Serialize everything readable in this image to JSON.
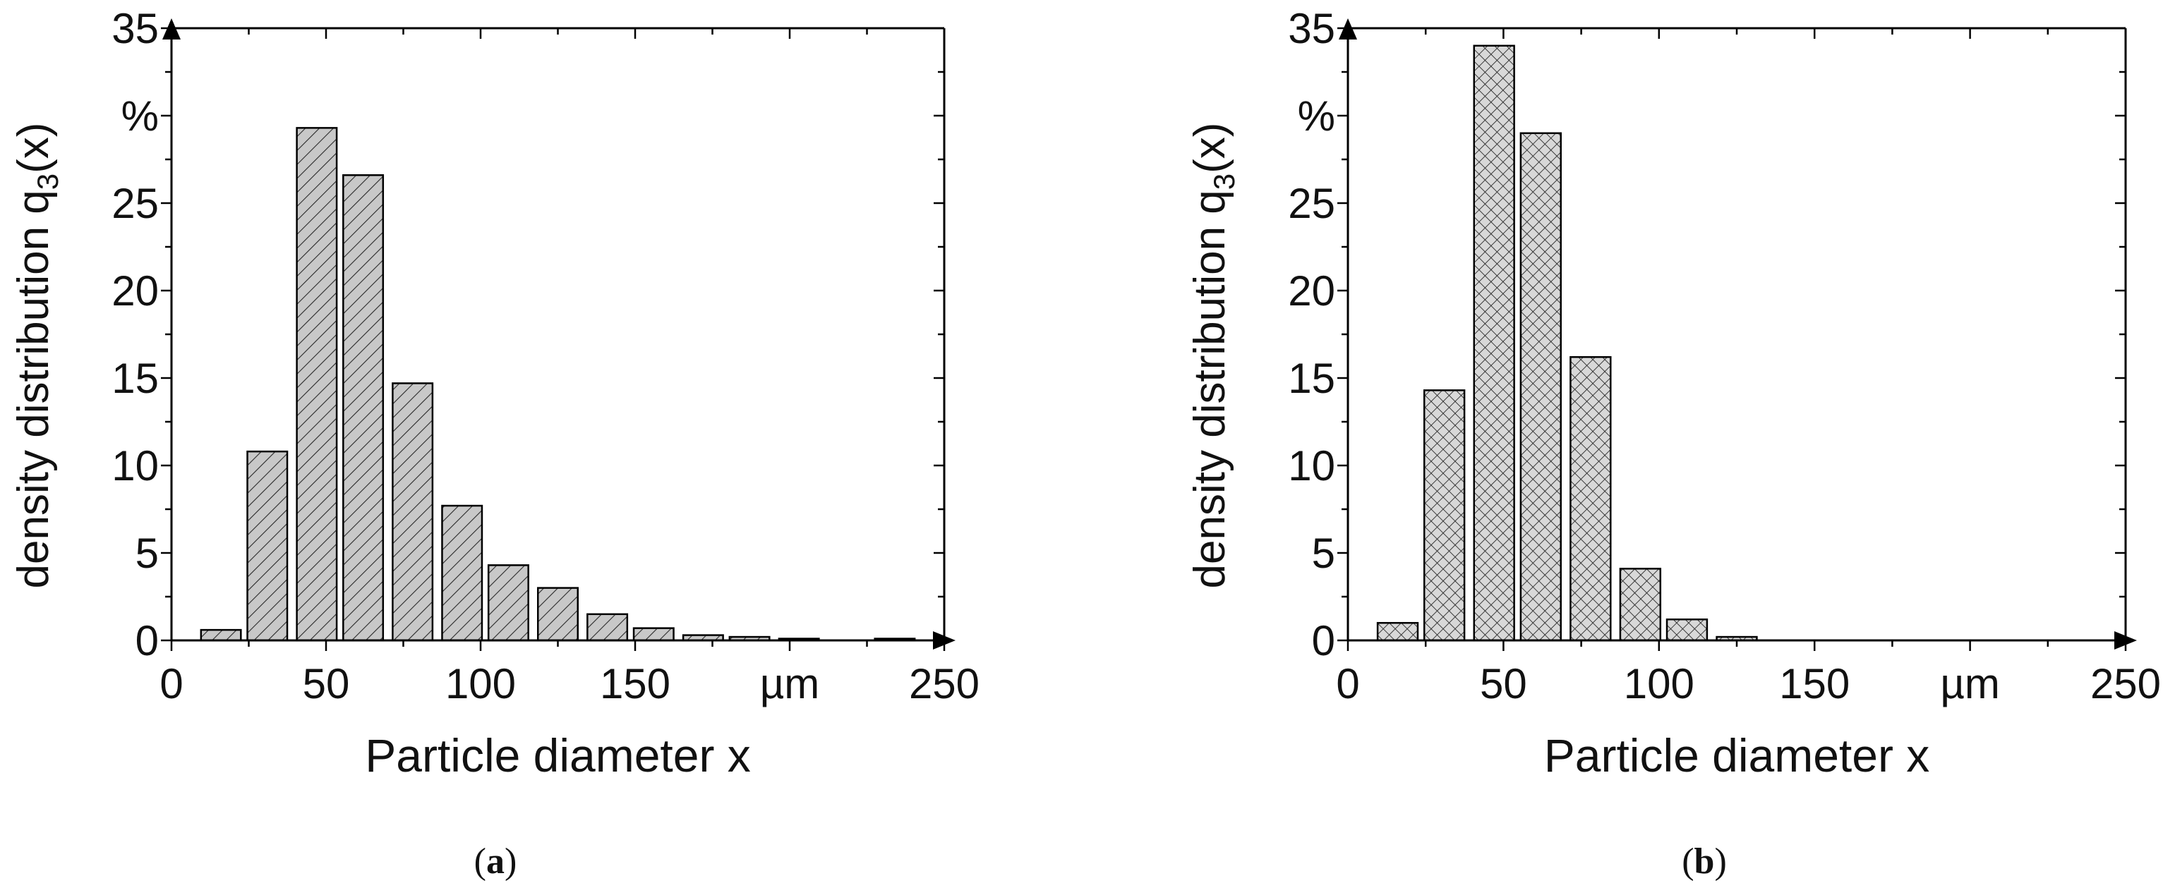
{
  "figure": {
    "panels": [
      {
        "caption_open": "(",
        "caption_letter": "a",
        "caption_close": ")"
      },
      {
        "caption_open": "(",
        "caption_letter": "b",
        "caption_close": ")"
      }
    ]
  },
  "colors": {
    "bar_fill": "#c8c8c8",
    "bar_fill_b": "#d8d8d8",
    "hatch": "#2a2a2a",
    "axis": "#000000"
  },
  "chart_data": [
    {
      "type": "bar",
      "pattern": "diagonal-hatch",
      "title": "",
      "ylabel_main": "density distribution q",
      "ylabel_sub": "3",
      "ylabel_end": "(x)",
      "ylabel_unit": "%",
      "xlabel": "Particle diameter x",
      "xlabel_unit": "µm",
      "xlim": [
        0,
        250
      ],
      "ylim": [
        0,
        35
      ],
      "xticks": [
        0,
        50,
        100,
        150,
        250
      ],
      "yticks": [
        0,
        5,
        10,
        15,
        20,
        25,
        30,
        35
      ],
      "y_tick_display": [
        "0",
        "5",
        "10",
        "15",
        "20",
        "25",
        "",
        "35"
      ],
      "grid": false,
      "bin_width": 15,
      "bars": [
        {
          "x": 16,
          "y": 0.6
        },
        {
          "x": 31,
          "y": 10.8
        },
        {
          "x": 47,
          "y": 29.3
        },
        {
          "x": 62,
          "y": 26.6
        },
        {
          "x": 78,
          "y": 14.7
        },
        {
          "x": 94,
          "y": 7.7
        },
        {
          "x": 109,
          "y": 4.3
        },
        {
          "x": 125,
          "y": 3.0
        },
        {
          "x": 141,
          "y": 1.5
        },
        {
          "x": 156,
          "y": 0.7
        },
        {
          "x": 172,
          "y": 0.3
        },
        {
          "x": 187,
          "y": 0.2
        },
        {
          "x": 203,
          "y": 0.1
        },
        {
          "x": 234,
          "y": 0.1
        }
      ]
    },
    {
      "type": "bar",
      "pattern": "cross-hatch",
      "title": "",
      "ylabel_main": "density distribution q",
      "ylabel_sub": "3",
      "ylabel_end": "(x)",
      "ylabel_unit": "%",
      "xlabel": "Particle diameter x",
      "xlabel_unit": "µm",
      "xlim": [
        0,
        250
      ],
      "ylim": [
        0,
        35
      ],
      "xticks": [
        0,
        50,
        100,
        150,
        250
      ],
      "yticks": [
        0,
        5,
        10,
        15,
        20,
        25,
        30,
        35
      ],
      "y_tick_display": [
        "0",
        "5",
        "10",
        "15",
        "20",
        "25",
        "",
        "35"
      ],
      "grid": false,
      "bin_width": 15,
      "bars": [
        {
          "x": 16,
          "y": 1.0
        },
        {
          "x": 31,
          "y": 14.3
        },
        {
          "x": 47,
          "y": 34.0
        },
        {
          "x": 62,
          "y": 29.0
        },
        {
          "x": 78,
          "y": 16.2
        },
        {
          "x": 94,
          "y": 4.1
        },
        {
          "x": 109,
          "y": 1.2
        },
        {
          "x": 125,
          "y": 0.2
        }
      ]
    }
  ]
}
